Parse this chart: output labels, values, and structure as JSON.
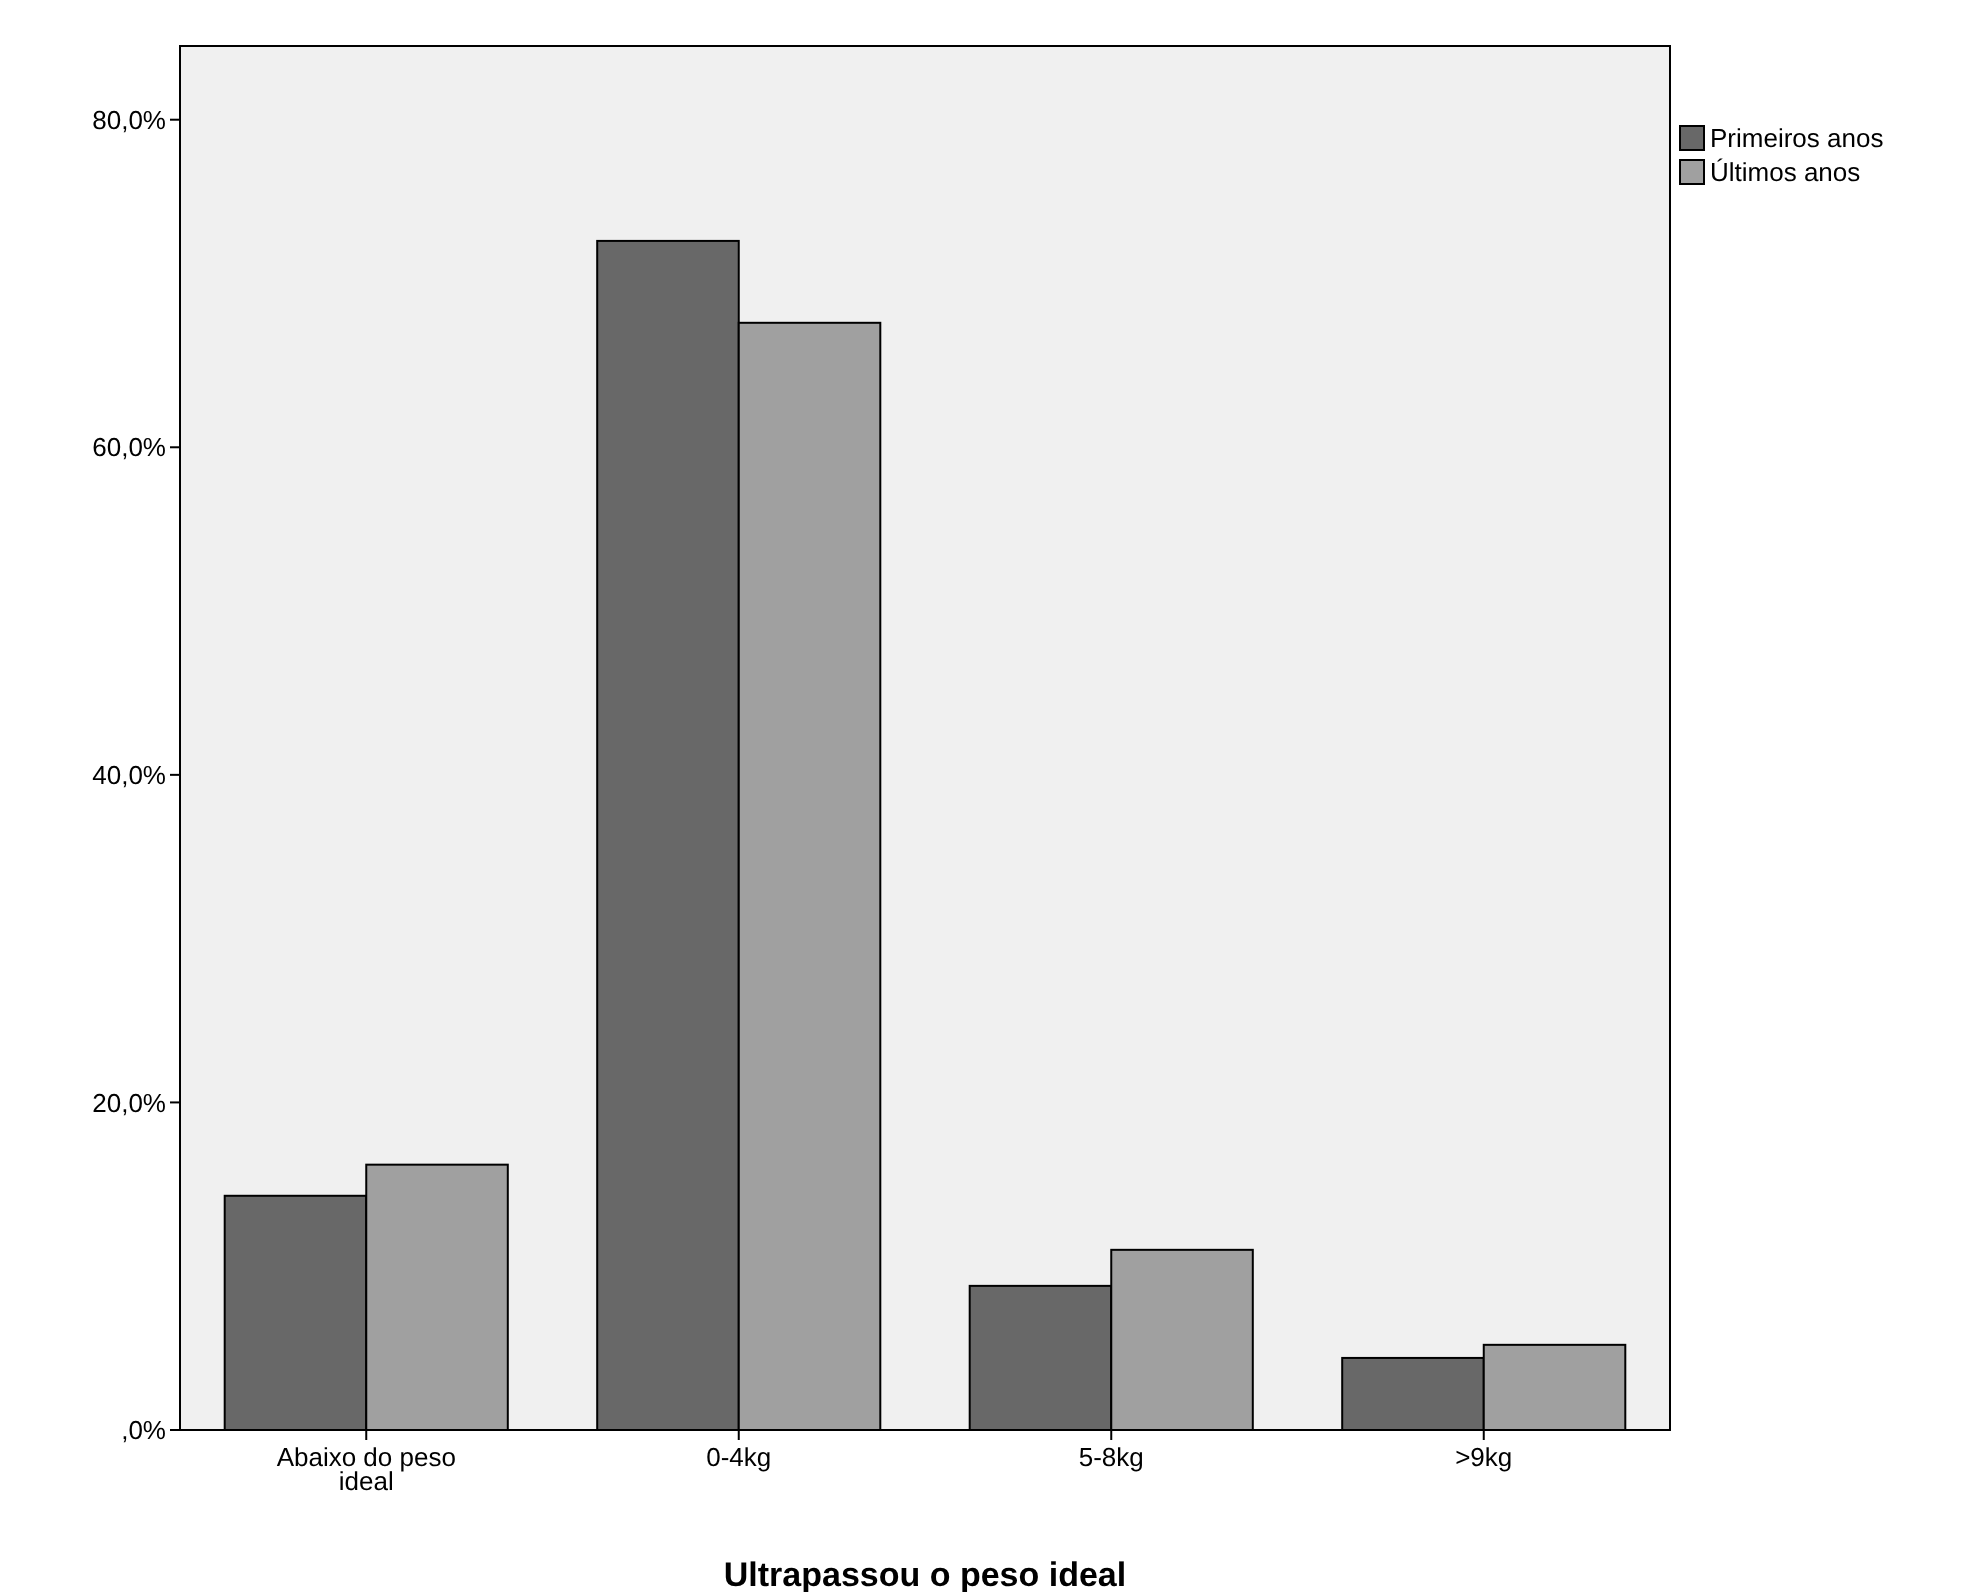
{
  "chart_data": {
    "type": "bar",
    "xlabel": "Ultrapassou o peso ideal",
    "categories": [
      "Abaixo do peso ideal",
      "0-4kg",
      "5-8kg",
      ">9kg"
    ],
    "series": [
      {
        "name": "Primeiros anos",
        "color": "#686868",
        "values": [
          14.3,
          72.6,
          8.8,
          4.4
        ]
      },
      {
        "name": "Últimos anos",
        "color": "#a0a0a0",
        "values": [
          16.2,
          67.6,
          11.0,
          5.2
        ]
      }
    ],
    "ylim": [
      0,
      84.5
    ],
    "yticks": [
      {
        "value": 0,
        "label": ",0%"
      },
      {
        "value": 20,
        "label": "20,0%"
      },
      {
        "value": 40,
        "label": "40,0%"
      },
      {
        "value": 60,
        "label": "60,0%"
      },
      {
        "value": 80,
        "label": "80,0%"
      }
    ],
    "grid": false,
    "legend": "top right"
  }
}
